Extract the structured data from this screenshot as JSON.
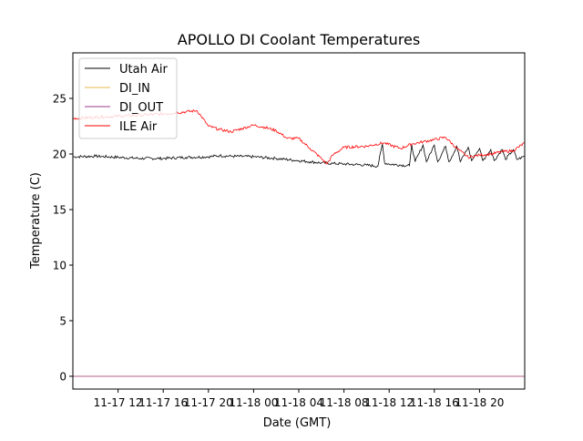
{
  "chart_data": {
    "type": "line",
    "title": "APOLLO DI Coolant Temperatures",
    "xlabel": "Date (GMT)",
    "ylabel": "Temperature (C)",
    "x_unit": "hours since 11-17 08:00 GMT",
    "xlim": [
      0,
      40
    ],
    "ylim": [
      -1.15,
      29.1
    ],
    "x_ticks": [
      {
        "value": 4,
        "label": "11-17 12"
      },
      {
        "value": 8,
        "label": "11-17 16"
      },
      {
        "value": 12,
        "label": "11-17 20"
      },
      {
        "value": 16,
        "label": "11-18 00"
      },
      {
        "value": 20,
        "label": "11-18 04"
      },
      {
        "value": 24,
        "label": "11-18 08"
      },
      {
        "value": 28,
        "label": "11-18 12"
      },
      {
        "value": 32,
        "label": "11-18 16"
      },
      {
        "value": 36,
        "label": "11-18 20"
      }
    ],
    "y_ticks": [
      {
        "value": 0,
        "label": "0"
      },
      {
        "value": 5,
        "label": "5"
      },
      {
        "value": 10,
        "label": "10"
      },
      {
        "value": 15,
        "label": "15"
      },
      {
        "value": 20,
        "label": "20"
      },
      {
        "value": 25,
        "label": "25"
      }
    ],
    "grid": false,
    "legend_position": "top-left",
    "series": [
      {
        "name": "Utah Air",
        "color": "#000000",
        "x": [
          0,
          2,
          4,
          6,
          8,
          10,
          12,
          13,
          14,
          16,
          18,
          20,
          21,
          22,
          23,
          24,
          25,
          26,
          27,
          27.4,
          27.6,
          28,
          29,
          29.8,
          30,
          30.3,
          31,
          31.3,
          32,
          32.3,
          33,
          33.3,
          34,
          34.3,
          35,
          35.3,
          36,
          36.3,
          37,
          37.3,
          38,
          38.3,
          39,
          39.3,
          40
        ],
        "values": [
          19.75,
          19.8,
          19.7,
          19.6,
          19.6,
          19.7,
          19.75,
          19.85,
          19.8,
          19.75,
          19.6,
          19.4,
          19.3,
          19.2,
          19.15,
          19.1,
          19.05,
          19.0,
          18.9,
          20.9,
          19.2,
          19.1,
          19.0,
          18.95,
          20.8,
          19.3,
          20.8,
          19.3,
          20.8,
          19.3,
          20.7,
          19.3,
          20.7,
          19.3,
          20.6,
          19.4,
          20.5,
          19.4,
          20.4,
          19.4,
          20.4,
          19.5,
          20.4,
          19.5,
          19.8
        ]
      },
      {
        "name": "DI_IN",
        "color": "#e8b84a",
        "x": [
          0,
          40
        ],
        "values": [
          0,
          0
        ]
      },
      {
        "name": "DI_OUT",
        "color": "#9b3b8f",
        "x": [
          0,
          40
        ],
        "values": [
          0,
          0
        ]
      },
      {
        "name": "ILE Air",
        "color": "#ff0000",
        "x": [
          0,
          2,
          4,
          6,
          8,
          10,
          11,
          12,
          13,
          14,
          15,
          16,
          17,
          18,
          19,
          20,
          21,
          22,
          22.5,
          23,
          24,
          26,
          27.5,
          29,
          30,
          31,
          32,
          33,
          34,
          35,
          36,
          37,
          38,
          39,
          40
        ],
        "values": [
          23.2,
          23.3,
          23.4,
          23.5,
          23.6,
          23.8,
          23.9,
          22.5,
          22.2,
          22.0,
          22.3,
          22.6,
          22.4,
          22.1,
          21.4,
          21.4,
          20.5,
          19.6,
          19.1,
          19.9,
          20.6,
          20.7,
          21.0,
          20.5,
          20.9,
          21.1,
          21.3,
          21.5,
          20.5,
          19.7,
          19.9,
          20.0,
          20.2,
          20.3,
          21.0
        ]
      }
    ]
  }
}
